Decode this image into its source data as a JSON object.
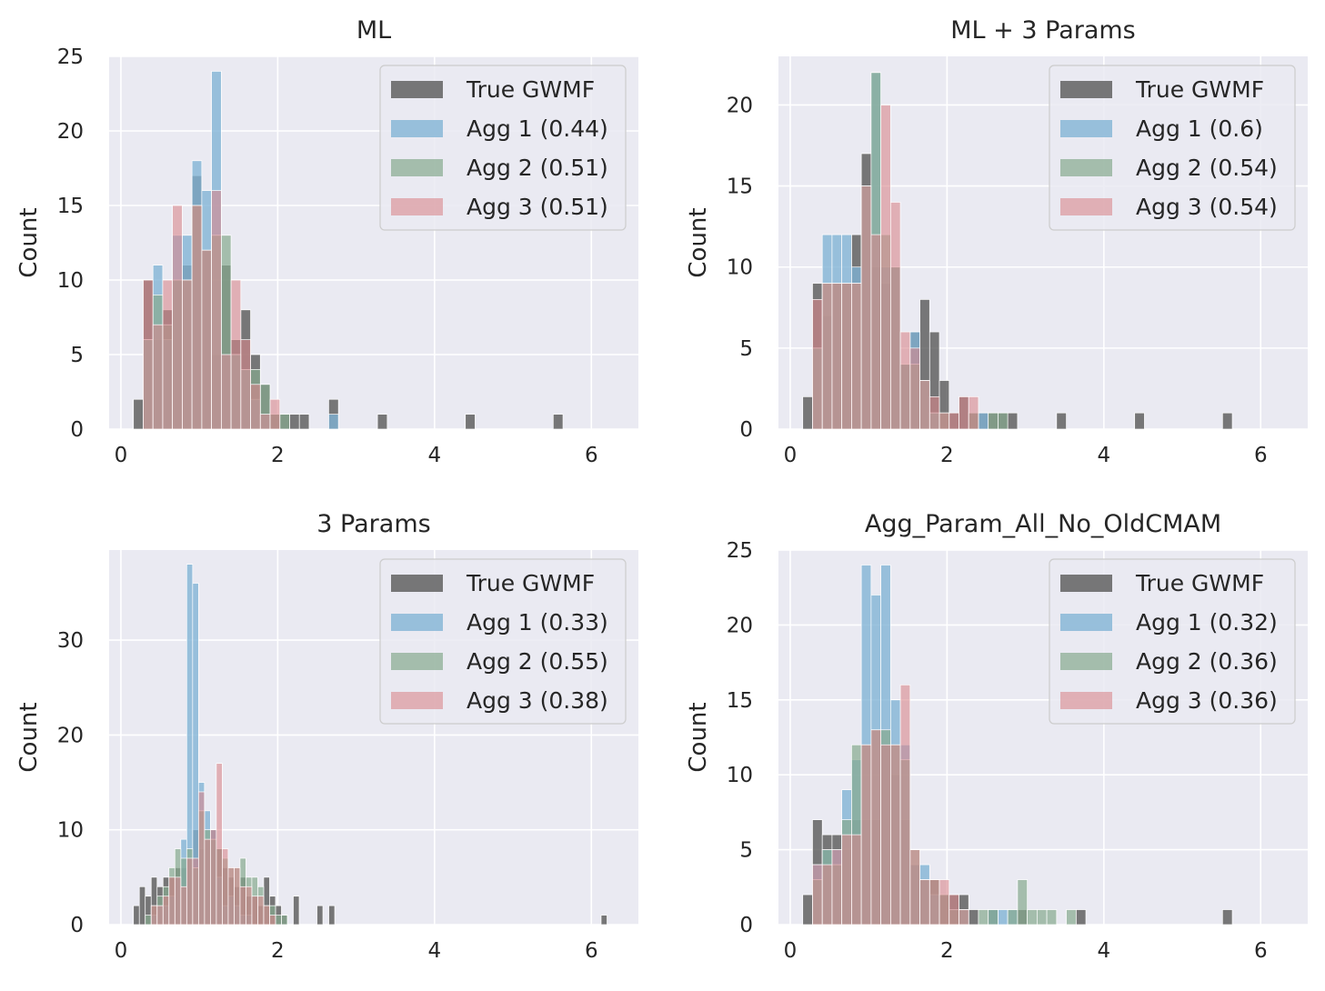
{
  "colors": {
    "background": "#eaeaf2",
    "grid": "#ffffff",
    "true_gwmf": "#555555",
    "agg1": "#7fb2d5",
    "agg2": "#86a98f",
    "agg3": "#d8878c"
  },
  "chart_data": [
    {
      "type": "bar",
      "histogram": true,
      "title": "ML",
      "ylabel": "Count",
      "xlabel": "",
      "xlim": [
        -0.15,
        6.6
      ],
      "ylim": [
        0,
        25
      ],
      "xticks": [
        "0",
        "2",
        "4",
        "6"
      ],
      "xtick_values": [
        0,
        2,
        4,
        6
      ],
      "yticks": [
        "0",
        "5",
        "10",
        "15",
        "20",
        "25"
      ],
      "ytick_values": [
        0,
        5,
        10,
        15,
        20,
        25
      ],
      "bin_start": 0.16,
      "bin_width": 0.1245,
      "legend_position": "top-right",
      "series": [
        {
          "name": "True GWMF",
          "key": "true_gwmf",
          "values": [
            2,
            10,
            6,
            8,
            10,
            11,
            17,
            12,
            5,
            11,
            6,
            8,
            5,
            3,
            1,
            1,
            1,
            1,
            0,
            0,
            2,
            0,
            0,
            0,
            0,
            1,
            0,
            0,
            0,
            0,
            0,
            0,
            0,
            0,
            1,
            0,
            0,
            0,
            0,
            0,
            0,
            0,
            0,
            1
          ]
        },
        {
          "name": "Agg 1 (0.44)",
          "key": "agg1",
          "values": [
            0,
            6,
            11,
            6,
            13,
            13,
            18,
            16,
            24,
            5,
            5,
            4,
            2,
            1,
            0,
            0,
            0,
            0,
            0,
            0,
            1
          ]
        },
        {
          "name": "Agg 2 (0.51)",
          "key": "agg2",
          "values": [
            0,
            6,
            9,
            7,
            10,
            10,
            15,
            12,
            13,
            13,
            5,
            4,
            4,
            3,
            1,
            1
          ]
        },
        {
          "name": "Agg 3 (0.51)",
          "key": "agg3",
          "values": [
            0,
            10,
            7,
            10,
            15,
            10,
            15,
            12,
            16,
            5,
            10,
            6,
            3,
            1,
            2
          ]
        }
      ]
    },
    {
      "type": "bar",
      "histogram": true,
      "title": "ML + 3 Params",
      "ylabel": "Count",
      "xlabel": "",
      "xlim": [
        -0.15,
        6.6
      ],
      "ylim": [
        0,
        23
      ],
      "xticks": [
        "0",
        "2",
        "4",
        "6"
      ],
      "xtick_values": [
        0,
        2,
        4,
        6
      ],
      "yticks": [
        "0",
        "5",
        "10",
        "15",
        "20"
      ],
      "ytick_values": [
        0,
        5,
        10,
        15,
        20
      ],
      "bin_start": 0.16,
      "bin_width": 0.1245,
      "legend_position": "top-right",
      "series": [
        {
          "name": "True GWMF",
          "key": "true_gwmf",
          "values": [
            2,
            9,
            7,
            9,
            9,
            12,
            17,
            10,
            9,
            10,
            4,
            6,
            8,
            6,
            3,
            1,
            2,
            1,
            1,
            1,
            1,
            1,
            0,
            0,
            0,
            0,
            1,
            0,
            0,
            0,
            0,
            0,
            0,
            0,
            1,
            0,
            0,
            0,
            0,
            0,
            0,
            0,
            0,
            1
          ]
        },
        {
          "name": "Agg 1 (0.6)",
          "key": "agg1",
          "values": [
            0,
            5,
            12,
            12,
            12,
            10,
            15,
            22,
            10,
            10,
            4,
            6,
            3,
            1,
            0,
            0,
            0,
            0,
            1
          ]
        },
        {
          "name": "Agg 2 (0.54)",
          "key": "agg2",
          "values": [
            0,
            5,
            9,
            9,
            9,
            9,
            15,
            22,
            12,
            10,
            4,
            4,
            3,
            1,
            1,
            0,
            0,
            1,
            0,
            1,
            1
          ]
        },
        {
          "name": "Agg 3 (0.54)",
          "key": "agg3",
          "values": [
            0,
            8,
            9,
            9,
            9,
            9,
            15,
            12,
            20,
            14,
            6,
            5,
            3,
            2,
            1,
            1,
            2,
            2
          ]
        }
      ]
    },
    {
      "type": "bar",
      "histogram": true,
      "title": "3 Params",
      "ylabel": "Count",
      "xlabel": "",
      "xlim": [
        -0.15,
        6.6
      ],
      "ylim": [
        0,
        39.5
      ],
      "xticks": [
        "0",
        "2",
        "4",
        "6"
      ],
      "xtick_values": [
        0,
        2,
        4,
        6
      ],
      "yticks": [
        "0",
        "10",
        "20",
        "30"
      ],
      "ytick_values": [
        0,
        10,
        20,
        30
      ],
      "bin_start": 0.16,
      "bin_width": 0.0755,
      "legend_position": "top-right",
      "series": [
        {
          "name": "True GWMF",
          "key": "true_gwmf",
          "values": [
            2,
            4,
            3,
            5,
            4,
            5,
            5,
            6,
            6,
            7,
            10,
            8,
            9,
            10,
            8,
            6,
            5,
            4,
            5,
            3,
            3,
            2,
            5,
            3,
            2,
            1,
            0,
            3,
            0,
            0,
            0,
            2,
            0,
            2,
            0,
            0,
            0,
            0,
            0,
            0,
            0,
            0,
            0,
            0,
            0,
            0,
            0,
            0,
            0,
            0,
            0,
            0,
            0,
            0,
            0,
            0,
            0,
            0,
            0,
            0,
            0,
            0,
            0,
            0,
            0,
            0,
            0,
            0,
            0,
            0,
            0,
            0,
            0,
            0,
            0,
            0,
            0,
            0,
            0,
            1
          ]
        },
        {
          "name": "Agg 1 (0.33)",
          "key": "agg1",
          "values": [
            0,
            0,
            0,
            1,
            2,
            2,
            3,
            5,
            9,
            38,
            36,
            15,
            12,
            10,
            5,
            2,
            3,
            2,
            1,
            1
          ]
        },
        {
          "name": "Agg 2 (0.55)",
          "key": "agg2",
          "values": [
            0,
            0,
            1,
            2,
            3,
            4,
            6,
            8,
            7,
            8,
            6,
            12,
            10,
            9,
            8,
            7,
            6,
            6,
            7,
            5,
            5,
            4,
            2,
            2,
            1,
            1
          ]
        },
        {
          "name": "Agg 3 (0.38)",
          "key": "agg3",
          "values": [
            0,
            0,
            0,
            2,
            2,
            3,
            5,
            5,
            4,
            7,
            7,
            14,
            9,
            10,
            17,
            8,
            6,
            6,
            4,
            4,
            3,
            3,
            2,
            1
          ]
        }
      ]
    },
    {
      "type": "bar",
      "histogram": true,
      "title": "Agg_Param_All_No_OldCMAM",
      "ylabel": "Count",
      "xlabel": "",
      "xlim": [
        -0.15,
        6.6
      ],
      "ylim": [
        0,
        25
      ],
      "xticks": [
        "0",
        "2",
        "4",
        "6"
      ],
      "xtick_values": [
        0,
        2,
        4,
        6
      ],
      "yticks": [
        "0",
        "5",
        "10",
        "15",
        "20",
        "25"
      ],
      "ytick_values": [
        0,
        5,
        10,
        15,
        20,
        25
      ],
      "bin_start": 0.16,
      "bin_width": 0.1245,
      "legend_position": "top-right",
      "series": [
        {
          "name": "True GWMF",
          "key": "true_gwmf",
          "values": [
            2,
            7,
            6,
            6,
            5,
            7,
            7,
            7,
            12,
            10,
            7,
            4,
            3,
            3,
            2,
            2,
            2,
            1,
            0,
            1,
            0,
            0,
            1,
            0,
            0,
            0,
            0,
            0,
            1,
            0,
            0,
            0,
            0,
            0,
            0,
            0,
            0,
            0,
            0,
            0,
            0,
            0,
            0,
            1
          ]
        },
        {
          "name": "Agg 1 (0.32)",
          "key": "agg1",
          "values": [
            0,
            4,
            5,
            5,
            9,
            11,
            24,
            22,
            24,
            15,
            12,
            4,
            4,
            2,
            0,
            0,
            1,
            0,
            0,
            1,
            1,
            1
          ]
        },
        {
          "name": "Agg 2 (0.36)",
          "key": "agg2",
          "values": [
            0,
            3,
            5,
            4,
            7,
            12,
            12,
            13,
            13,
            12,
            11,
            5,
            3,
            3,
            2,
            1,
            1,
            0,
            1,
            1,
            0,
            1,
            3,
            1,
            1,
            1,
            0,
            1
          ]
        },
        {
          "name": "Agg 3 (0.36)",
          "key": "agg3",
          "values": [
            0,
            4,
            4,
            5,
            6,
            6,
            12,
            13,
            12,
            12,
            16,
            5,
            3,
            3,
            3,
            2,
            1
          ]
        }
      ]
    }
  ]
}
